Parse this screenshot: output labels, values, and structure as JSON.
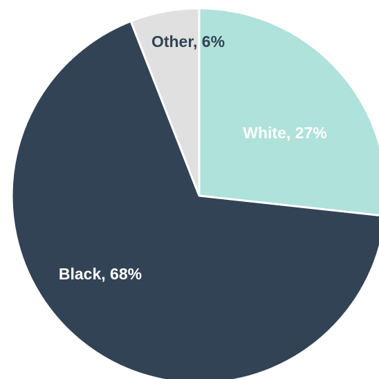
{
  "chart_data": {
    "type": "pie",
    "title": "",
    "start_angle_deg": 0,
    "direction": "clockwise",
    "legend": "none",
    "slices": [
      {
        "name": "White",
        "value": 27,
        "label": "White, 27%",
        "color": "#AEE2DA",
        "label_color": "#FFFFFF"
      },
      {
        "name": "Black",
        "value": 68,
        "label": "Black, 68%",
        "color": "#324355",
        "label_color": "#FFFFFF"
      },
      {
        "name": "Other",
        "value": 6,
        "label": "Other, 6%",
        "color": "#E0E0E0",
        "label_color": "#324355"
      }
    ]
  }
}
